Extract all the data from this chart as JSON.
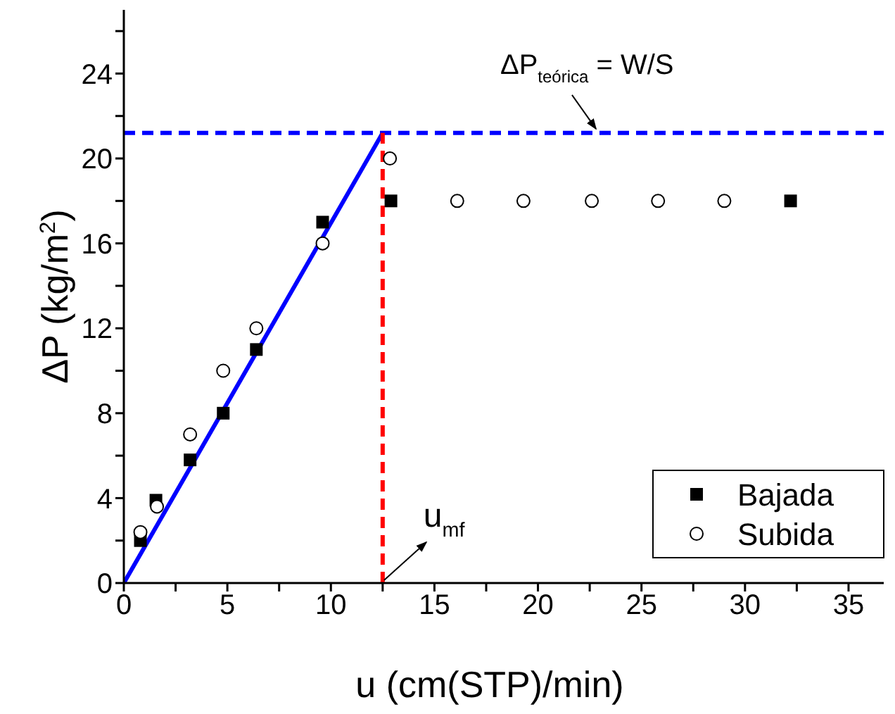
{
  "chart_data": {
    "type": "scatter",
    "xlabel": "u (cm(STP)/min)",
    "ylabel": "ΔP (kg/m$^{2}$)",
    "xlim": [
      0,
      36.7
    ],
    "ylim": [
      0,
      27
    ],
    "xticks": [
      0,
      {
        "value": 2.5,
        "label": null
      },
      5,
      {
        "value": 7.5,
        "label": null
      },
      10,
      {
        "value": 12.5,
        "label": null
      },
      15,
      {
        "value": 17.5,
        "label": null
      },
      20,
      {
        "value": 22.5,
        "label": null
      },
      25,
      {
        "value": 27.5,
        "label": null
      },
      30,
      {
        "value": 32.5,
        "label": null
      },
      35
    ],
    "yticks": [
      0,
      {
        "value": 2,
        "label": null
      },
      4,
      {
        "value": 6,
        "label": null
      },
      8,
      {
        "value": 10,
        "label": null
      },
      12,
      {
        "value": 14,
        "label": null
      },
      16,
      {
        "value": 18,
        "label": null
      },
      20,
      {
        "value": 22,
        "label": null
      },
      24,
      {
        "value": 26,
        "label": null
      }
    ],
    "legend": "bottom right",
    "series": [
      {
        "name": "Bajada",
        "marker": "square",
        "color": "#000000",
        "x": [
          0.8,
          1.55,
          3.2,
          4.8,
          6.4,
          9.6,
          12.9,
          32.2
        ],
        "values": [
          2.0,
          3.9,
          5.8,
          8.0,
          11,
          17,
          18,
          18
        ]
      },
      {
        "name": "Subida",
        "marker": "circle",
        "color": "#000000",
        "x": [
          0.8,
          1.6,
          3.2,
          4.8,
          6.4,
          9.6,
          12.85,
          16.1,
          19.3,
          22.6,
          25.8,
          29.0
        ],
        "values": [
          2.4,
          3.6,
          7,
          10,
          12,
          16,
          20,
          18,
          18,
          18,
          18,
          18
        ]
      },
      {
        "type": "line",
        "marker": "none",
        "line_style": "solid",
        "color": "#0000ff",
        "x": [
          0,
          12.5
        ],
        "values": [
          0,
          21.2
        ]
      },
      {
        "type": "line",
        "marker": "none",
        "line_style": "dashed",
        "color": "#ff0000",
        "x": [
          12.5,
          12.5
        ],
        "values": [
          0,
          21.2
        ]
      }
    ],
    "ref_lines": [
      {
        "axis": "y",
        "value": 21.2,
        "color": "#0000ff",
        "line_style": "dashed"
      }
    ],
    "annotations": [
      {
        "text": "ΔP$_{teórica}$ = W/S",
        "x": 22.8,
        "y": 21.2
      },
      {
        "text": "u$_{mf}$",
        "x": 12.5,
        "y": 0
      }
    ]
  }
}
